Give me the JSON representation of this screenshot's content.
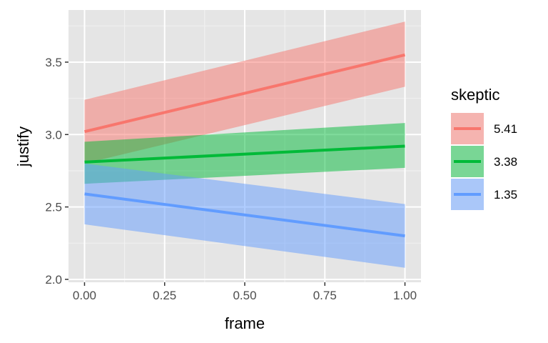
{
  "chart_data": {
    "type": "line",
    "xlabel": "frame",
    "ylabel": "justify",
    "xlim": [
      -0.05,
      1.05
    ],
    "ylim": [
      1.98,
      3.86
    ],
    "x_ticks": [
      0.0,
      0.25,
      0.5,
      0.75,
      1.0
    ],
    "x_tick_labels": [
      "0.00",
      "0.25",
      "0.50",
      "0.75",
      "1.00"
    ],
    "y_ticks": [
      2.0,
      2.5,
      3.0,
      3.5
    ],
    "y_tick_labels": [
      "2.0",
      "2.5",
      "3.0",
      "3.5"
    ],
    "grid": true,
    "panel_background": "#e5e5e5",
    "legend": {
      "title": "skeptic",
      "position": "right"
    },
    "series": [
      {
        "name": "5.41",
        "color": "#f8766d",
        "x": [
          0,
          1
        ],
        "y": [
          3.02,
          3.55
        ],
        "ci_lower": [
          2.8,
          3.33
        ],
        "ci_upper": [
          3.24,
          3.78
        ]
      },
      {
        "name": "3.38",
        "color": "#00ba38",
        "x": [
          0,
          1
        ],
        "y": [
          2.81,
          2.92
        ],
        "ci_lower": [
          2.66,
          2.77
        ],
        "ci_upper": [
          2.95,
          3.08
        ]
      },
      {
        "name": "1.35",
        "color": "#619cff",
        "x": [
          0,
          1
        ],
        "y": [
          2.59,
          2.3
        ],
        "ci_lower": [
          2.38,
          2.08
        ],
        "ci_upper": [
          2.8,
          2.52
        ]
      }
    ]
  }
}
